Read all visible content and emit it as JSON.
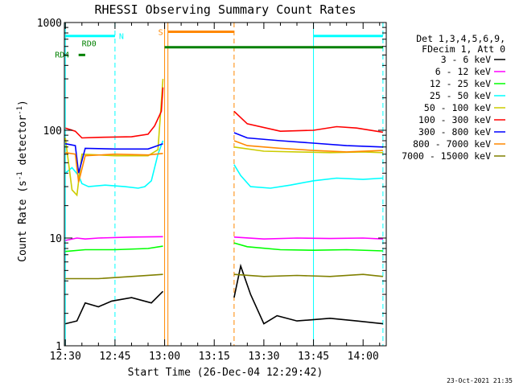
{
  "chart_data": {
    "type": "line",
    "title": "RHESSI Observing Summary Count Rates",
    "xlabel": "Start Time (26-Dec-04 12:29:42)",
    "ylabel_parts": [
      "Count Rate (s",
      "-1",
      " detector",
      "-1",
      ")"
    ],
    "timestamp": "23-Oct-2021 21:35",
    "x_ticks": [
      {
        "t": 0,
        "label": "12:30"
      },
      {
        "t": 15,
        "label": "12:45"
      },
      {
        "t": 30,
        "label": "13:00"
      },
      {
        "t": 45,
        "label": "13:15"
      },
      {
        "t": 60,
        "label": "13:30"
      },
      {
        "t": 75,
        "label": "13:45"
      },
      {
        "t": 90,
        "label": "14:00"
      }
    ],
    "xlim": [
      -0.3,
      97
    ],
    "ylim": [
      1,
      1000
    ],
    "yscale": "log",
    "y_ticks": [
      {
        "v": 1,
        "label": "1"
      },
      {
        "v": 10,
        "label": "10"
      },
      {
        "v": 100,
        "label": "100"
      },
      {
        "v": 1000,
        "label": "1000"
      }
    ],
    "legend": {
      "header": [
        "Det 1,3,4,5,6,9,",
        "FDecim 1, Att 0"
      ],
      "placement": "top-right-outside"
    },
    "series": [
      {
        "name": "3 - 6 keV",
        "color": "#000000",
        "points": [
          [
            0,
            1.6
          ],
          [
            3.5,
            1.7
          ],
          [
            6,
            2.5
          ],
          [
            10,
            2.3
          ],
          [
            14,
            2.6
          ],
          [
            20,
            2.8
          ],
          [
            26,
            2.5
          ],
          [
            29.5,
            3.2
          ],
          [
            50.5,
            null
          ],
          [
            51,
            2.8
          ],
          [
            53,
            5.5
          ],
          [
            56,
            3.0
          ],
          [
            60,
            1.6
          ],
          [
            64,
            1.9
          ],
          [
            70,
            1.7
          ],
          [
            80,
            1.8
          ],
          [
            88,
            1.7
          ],
          [
            96,
            1.6
          ]
        ]
      },
      {
        "name": "6 - 12 keV",
        "color": "#ff00ff",
        "points": [
          [
            0,
            9.5
          ],
          [
            3.5,
            10
          ],
          [
            6,
            9.8
          ],
          [
            10,
            10
          ],
          [
            20,
            10.2
          ],
          [
            29.5,
            10.3
          ],
          [
            50.5,
            null
          ],
          [
            51,
            10.2
          ],
          [
            60,
            9.8
          ],
          [
            70,
            10
          ],
          [
            80,
            9.9
          ],
          [
            90,
            10
          ],
          [
            96,
            9.8
          ]
        ]
      },
      {
        "name": "12 - 25 keV",
        "color": "#00ff00",
        "points": [
          [
            0,
            7.5
          ],
          [
            6,
            7.8
          ],
          [
            15,
            7.8
          ],
          [
            25,
            8.0
          ],
          [
            29.5,
            8.4
          ],
          [
            50.5,
            null
          ],
          [
            51,
            9.0
          ],
          [
            55,
            8.3
          ],
          [
            65,
            7.8
          ],
          [
            75,
            7.7
          ],
          [
            85,
            7.8
          ],
          [
            96,
            7.6
          ]
        ]
      },
      {
        "name": "25 - 50 keV",
        "color": "#00ffff",
        "points": [
          [
            0,
            40
          ],
          [
            2,
            45
          ],
          [
            4,
            38
          ],
          [
            5,
            32
          ],
          [
            7,
            30
          ],
          [
            12,
            31
          ],
          [
            18,
            30
          ],
          [
            22,
            29
          ],
          [
            24,
            30
          ],
          [
            26,
            34
          ],
          [
            28,
            60
          ],
          [
            29.5,
            80
          ],
          [
            50.5,
            null
          ],
          [
            51,
            48
          ],
          [
            53,
            38
          ],
          [
            56,
            30
          ],
          [
            62,
            29
          ],
          [
            68,
            31
          ],
          [
            75,
            34
          ],
          [
            82,
            36
          ],
          [
            90,
            35
          ],
          [
            96,
            36
          ]
        ]
      },
      {
        "name": "50 - 100 keV",
        "color": "#cccc00",
        "points": [
          [
            0,
            85
          ],
          [
            2,
            28
          ],
          [
            3.5,
            25
          ],
          [
            5,
            60
          ],
          [
            15,
            58
          ],
          [
            25,
            58
          ],
          [
            28,
            66
          ],
          [
            29.5,
            300
          ],
          [
            50.5,
            null
          ],
          [
            51,
            70
          ],
          [
            60,
            64
          ],
          [
            70,
            63
          ],
          [
            80,
            62
          ],
          [
            90,
            63
          ],
          [
            96,
            62
          ]
        ]
      },
      {
        "name": "100 - 300 keV",
        "color": "#ff0000",
        "points": [
          [
            0,
            105
          ],
          [
            3,
            98
          ],
          [
            5,
            85
          ],
          [
            10,
            86
          ],
          [
            20,
            87
          ],
          [
            25,
            92
          ],
          [
            27,
            110
          ],
          [
            29,
            150
          ],
          [
            29.5,
            250
          ],
          [
            50.5,
            null
          ],
          [
            51,
            150
          ],
          [
            55,
            115
          ],
          [
            65,
            98
          ],
          [
            75,
            100
          ],
          [
            82,
            108
          ],
          [
            88,
            105
          ],
          [
            96,
            96
          ]
        ]
      },
      {
        "name": "300 - 800 keV",
        "color": "#0000ff",
        "points": [
          [
            0,
            75
          ],
          [
            3,
            72
          ],
          [
            4,
            40
          ],
          [
            6,
            68
          ],
          [
            15,
            67
          ],
          [
            25,
            67
          ],
          [
            29.5,
            75
          ],
          [
            50.5,
            null
          ],
          [
            51,
            95
          ],
          [
            55,
            85
          ],
          [
            65,
            80
          ],
          [
            75,
            76
          ],
          [
            85,
            72
          ],
          [
            96,
            70
          ]
        ]
      },
      {
        "name": "800 - 7000 keV",
        "color": "#ff8800",
        "points": [
          [
            0,
            62
          ],
          [
            3,
            60
          ],
          [
            4,
            33
          ],
          [
            6,
            58
          ],
          [
            15,
            60
          ],
          [
            25,
            59
          ],
          [
            29.5,
            61
          ],
          [
            50.5,
            null
          ],
          [
            51,
            80
          ],
          [
            55,
            72
          ],
          [
            65,
            68
          ],
          [
            75,
            65
          ],
          [
            85,
            63
          ],
          [
            96,
            65
          ]
        ]
      },
      {
        "name": "7000 - 15000 keV",
        "color": "#808000",
        "points": [
          [
            0,
            4.2
          ],
          [
            10,
            4.2
          ],
          [
            20,
            4.4
          ],
          [
            29.5,
            4.6
          ],
          [
            50.5,
            null
          ],
          [
            51,
            4.6
          ],
          [
            60,
            4.4
          ],
          [
            70,
            4.5
          ],
          [
            80,
            4.4
          ],
          [
            90,
            4.6
          ],
          [
            96,
            4.4
          ]
        ]
      }
    ],
    "vlines": [
      {
        "t": 0,
        "color": "#00ffff",
        "dash": false
      },
      {
        "t": 15,
        "color": "#00ffff",
        "dash": true
      },
      {
        "t": 30,
        "color": "#ff8800",
        "dash": false
      },
      {
        "t": 31,
        "color": "#ff8800",
        "dash": false
      },
      {
        "t": 51,
        "color": "#ff8800",
        "dash": true
      },
      {
        "t": 75,
        "color": "#00ffff",
        "dash": false
      },
      {
        "t": 96,
        "color": "#00ffff",
        "dash": true
      }
    ],
    "intervals": [
      {
        "label": "N",
        "color": "#00ffff",
        "segments": [
          [
            0,
            15
          ],
          [
            75,
            96
          ]
        ],
        "y": 750
      },
      {
        "label": "S",
        "color": "#ff8800",
        "segments": [
          [
            31,
            51
          ]
        ],
        "y": 820
      },
      {
        "label": "RD0",
        "color": "#008000",
        "segments": [
          [
            30,
            96
          ]
        ],
        "y": 590
      },
      {
        "label": "RD4",
        "color": "#008000",
        "segments": [
          [
            4,
            6
          ]
        ],
        "y": 500
      }
    ]
  }
}
